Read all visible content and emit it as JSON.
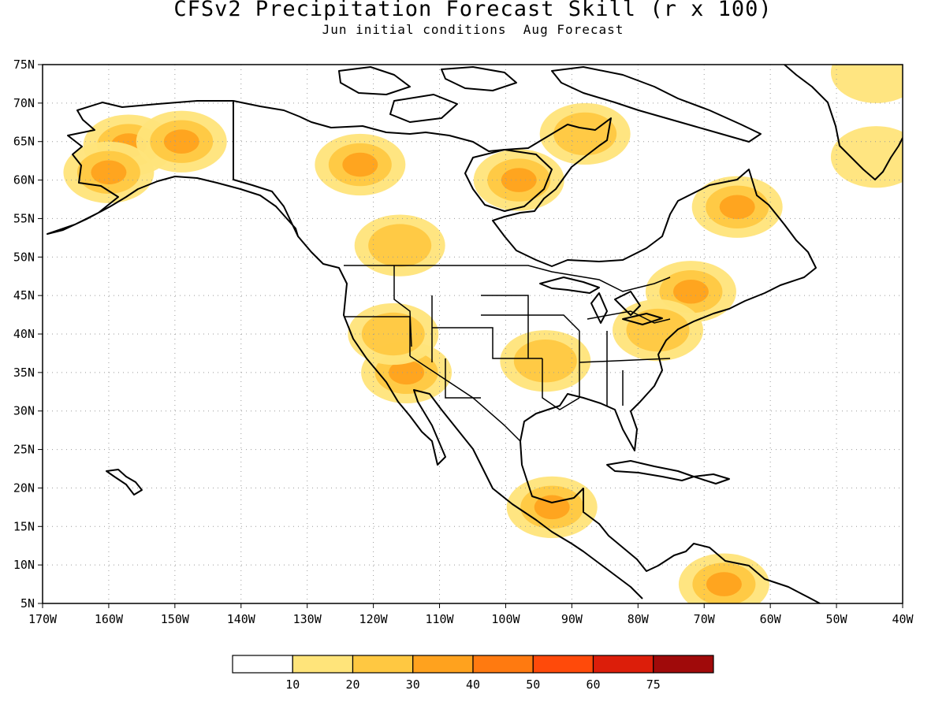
{
  "title": "CFSv2 Precipitation Forecast Skill (r x 100)",
  "subtitle": "Jun initial conditions  Aug Forecast",
  "map": {
    "lon_range": [
      -170,
      -40
    ],
    "lat_range": [
      5,
      75
    ],
    "lon_ticks": [
      {
        "value": -170,
        "label": "170W"
      },
      {
        "value": -160,
        "label": "160W"
      },
      {
        "value": -150,
        "label": "150W"
      },
      {
        "value": -140,
        "label": "140W"
      },
      {
        "value": -130,
        "label": "130W"
      },
      {
        "value": -120,
        "label": "120W"
      },
      {
        "value": -110,
        "label": "110W"
      },
      {
        "value": -100,
        "label": "100W"
      },
      {
        "value": -90,
        "label": "90W"
      },
      {
        "value": -80,
        "label": "80W"
      },
      {
        "value": -70,
        "label": "70W"
      },
      {
        "value": -60,
        "label": "60W"
      },
      {
        "value": -50,
        "label": "50W"
      },
      {
        "value": -40,
        "label": "40W"
      }
    ],
    "lat_ticks": [
      {
        "value": 5,
        "label": "5N"
      },
      {
        "value": 10,
        "label": "10N"
      },
      {
        "value": 15,
        "label": "15N"
      },
      {
        "value": 20,
        "label": "20N"
      },
      {
        "value": 25,
        "label": "25N"
      },
      {
        "value": 30,
        "label": "30N"
      },
      {
        "value": 35,
        "label": "35N"
      },
      {
        "value": 40,
        "label": "40N"
      },
      {
        "value": 45,
        "label": "45N"
      },
      {
        "value": 50,
        "label": "50N"
      },
      {
        "value": 55,
        "label": "55N"
      },
      {
        "value": 60,
        "label": "60N"
      },
      {
        "value": 65,
        "label": "65N"
      },
      {
        "value": 70,
        "label": "70N"
      },
      {
        "value": 75,
        "label": "75N"
      }
    ],
    "grid": "dotted",
    "skill_regions": [
      {
        "region": "Alaska west",
        "lon": -157,
        "lat": 64.5,
        "level": 3
      },
      {
        "region": "Alaska east",
        "lon": -149,
        "lat": 65,
        "level": 3
      },
      {
        "region": "Alaska south",
        "lon": -160,
        "lat": 61,
        "level": 3
      },
      {
        "region": "NW Canada",
        "lon": -122,
        "lat": 62,
        "level": 3
      },
      {
        "region": "Hudson Bay west",
        "lon": -98,
        "lat": 60,
        "level": 3
      },
      {
        "region": "Canadian prairies",
        "lon": -116,
        "lat": 51.5,
        "level": 2
      },
      {
        "region": "Labrador",
        "lon": -65,
        "lat": 56.5,
        "level": 3
      },
      {
        "region": "Baffin",
        "lon": -88,
        "lat": 66,
        "level": 2
      },
      {
        "region": "Northeast US",
        "lon": -72,
        "lat": 45.5,
        "level": 3
      },
      {
        "region": "Mid-Atlantic",
        "lon": -77,
        "lat": 40.5,
        "level": 2
      },
      {
        "region": "Southwest US",
        "lon": -115,
        "lat": 35,
        "level": 3
      },
      {
        "region": "Great Basin",
        "lon": -117,
        "lat": 40,
        "level": 2
      },
      {
        "region": "Southern Plains",
        "lon": -94,
        "lat": 36.5,
        "level": 2
      },
      {
        "region": "Southern Mexico",
        "lon": -93,
        "lat": 17.5,
        "level": 3
      },
      {
        "region": "Northern South America",
        "lon": -67,
        "lat": 7.5,
        "level": 3
      },
      {
        "region": "Greenland south",
        "lon": -44,
        "lat": 63,
        "level": 1
      },
      {
        "region": "Greenland north",
        "lon": -44,
        "lat": 74,
        "level": 1
      }
    ]
  },
  "legend": {
    "labels": [
      "10",
      "20",
      "30",
      "40",
      "50",
      "60",
      "75"
    ],
    "colors": [
      "#ffffff",
      "#ffe47a",
      "#ffc841",
      "#ffa21e",
      "#ff7a10",
      "#ff4a0a",
      "#dc1e0a",
      "#a00a0a"
    ]
  }
}
